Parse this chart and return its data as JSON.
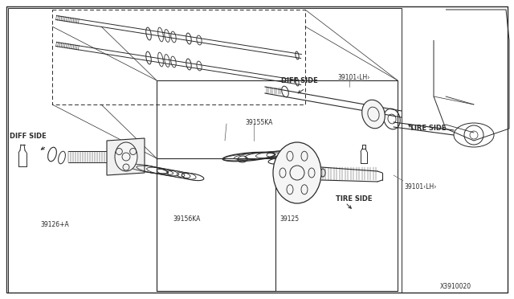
{
  "bg_color": "#ffffff",
  "line_color": "#2a2a2a",
  "gray": "#888888",
  "light_gray": "#cccccc",
  "part_number_main": "X3910020",
  "labels": {
    "diff_side_left": "DIFF SIDE",
    "diff_side_top": "DIFF SIDE",
    "tire_side_right": "TIRE SIDE",
    "tire_side_bottom": "TIRE SIDE",
    "part_39101_lh_top": "39101‹LH›",
    "part_39101_lh_bottom": "39101‹LH›",
    "part_39155ka": "39155KA",
    "part_39156ka": "39156KA",
    "part_39126a": "39126+A",
    "part_39125": "39125"
  }
}
